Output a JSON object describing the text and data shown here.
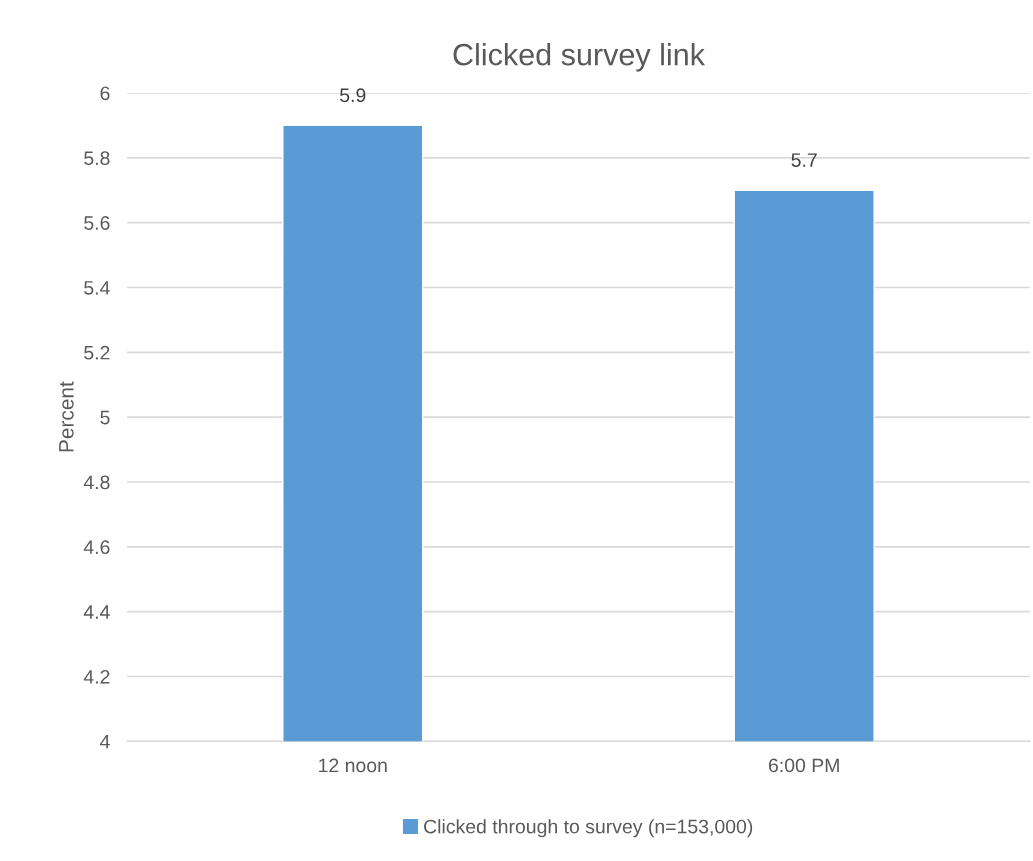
{
  "chart_data": {
    "type": "bar",
    "title": "Clicked survey link",
    "ylabel": "Percent",
    "categories": [
      "12 noon",
      "6:00 PM"
    ],
    "series": [
      {
        "name": "Clicked through to survey (n=153,000)",
        "color": "#5b9bd5",
        "values": [
          5.9,
          5.7
        ]
      }
    ],
    "ylim": [
      4,
      6
    ],
    "yticks": [
      4,
      4.2,
      4.4,
      4.6,
      4.8,
      5,
      5.2,
      5.4,
      5.6,
      5.8,
      6
    ],
    "grid": "y",
    "legend": "bottom",
    "data_labels": true
  }
}
